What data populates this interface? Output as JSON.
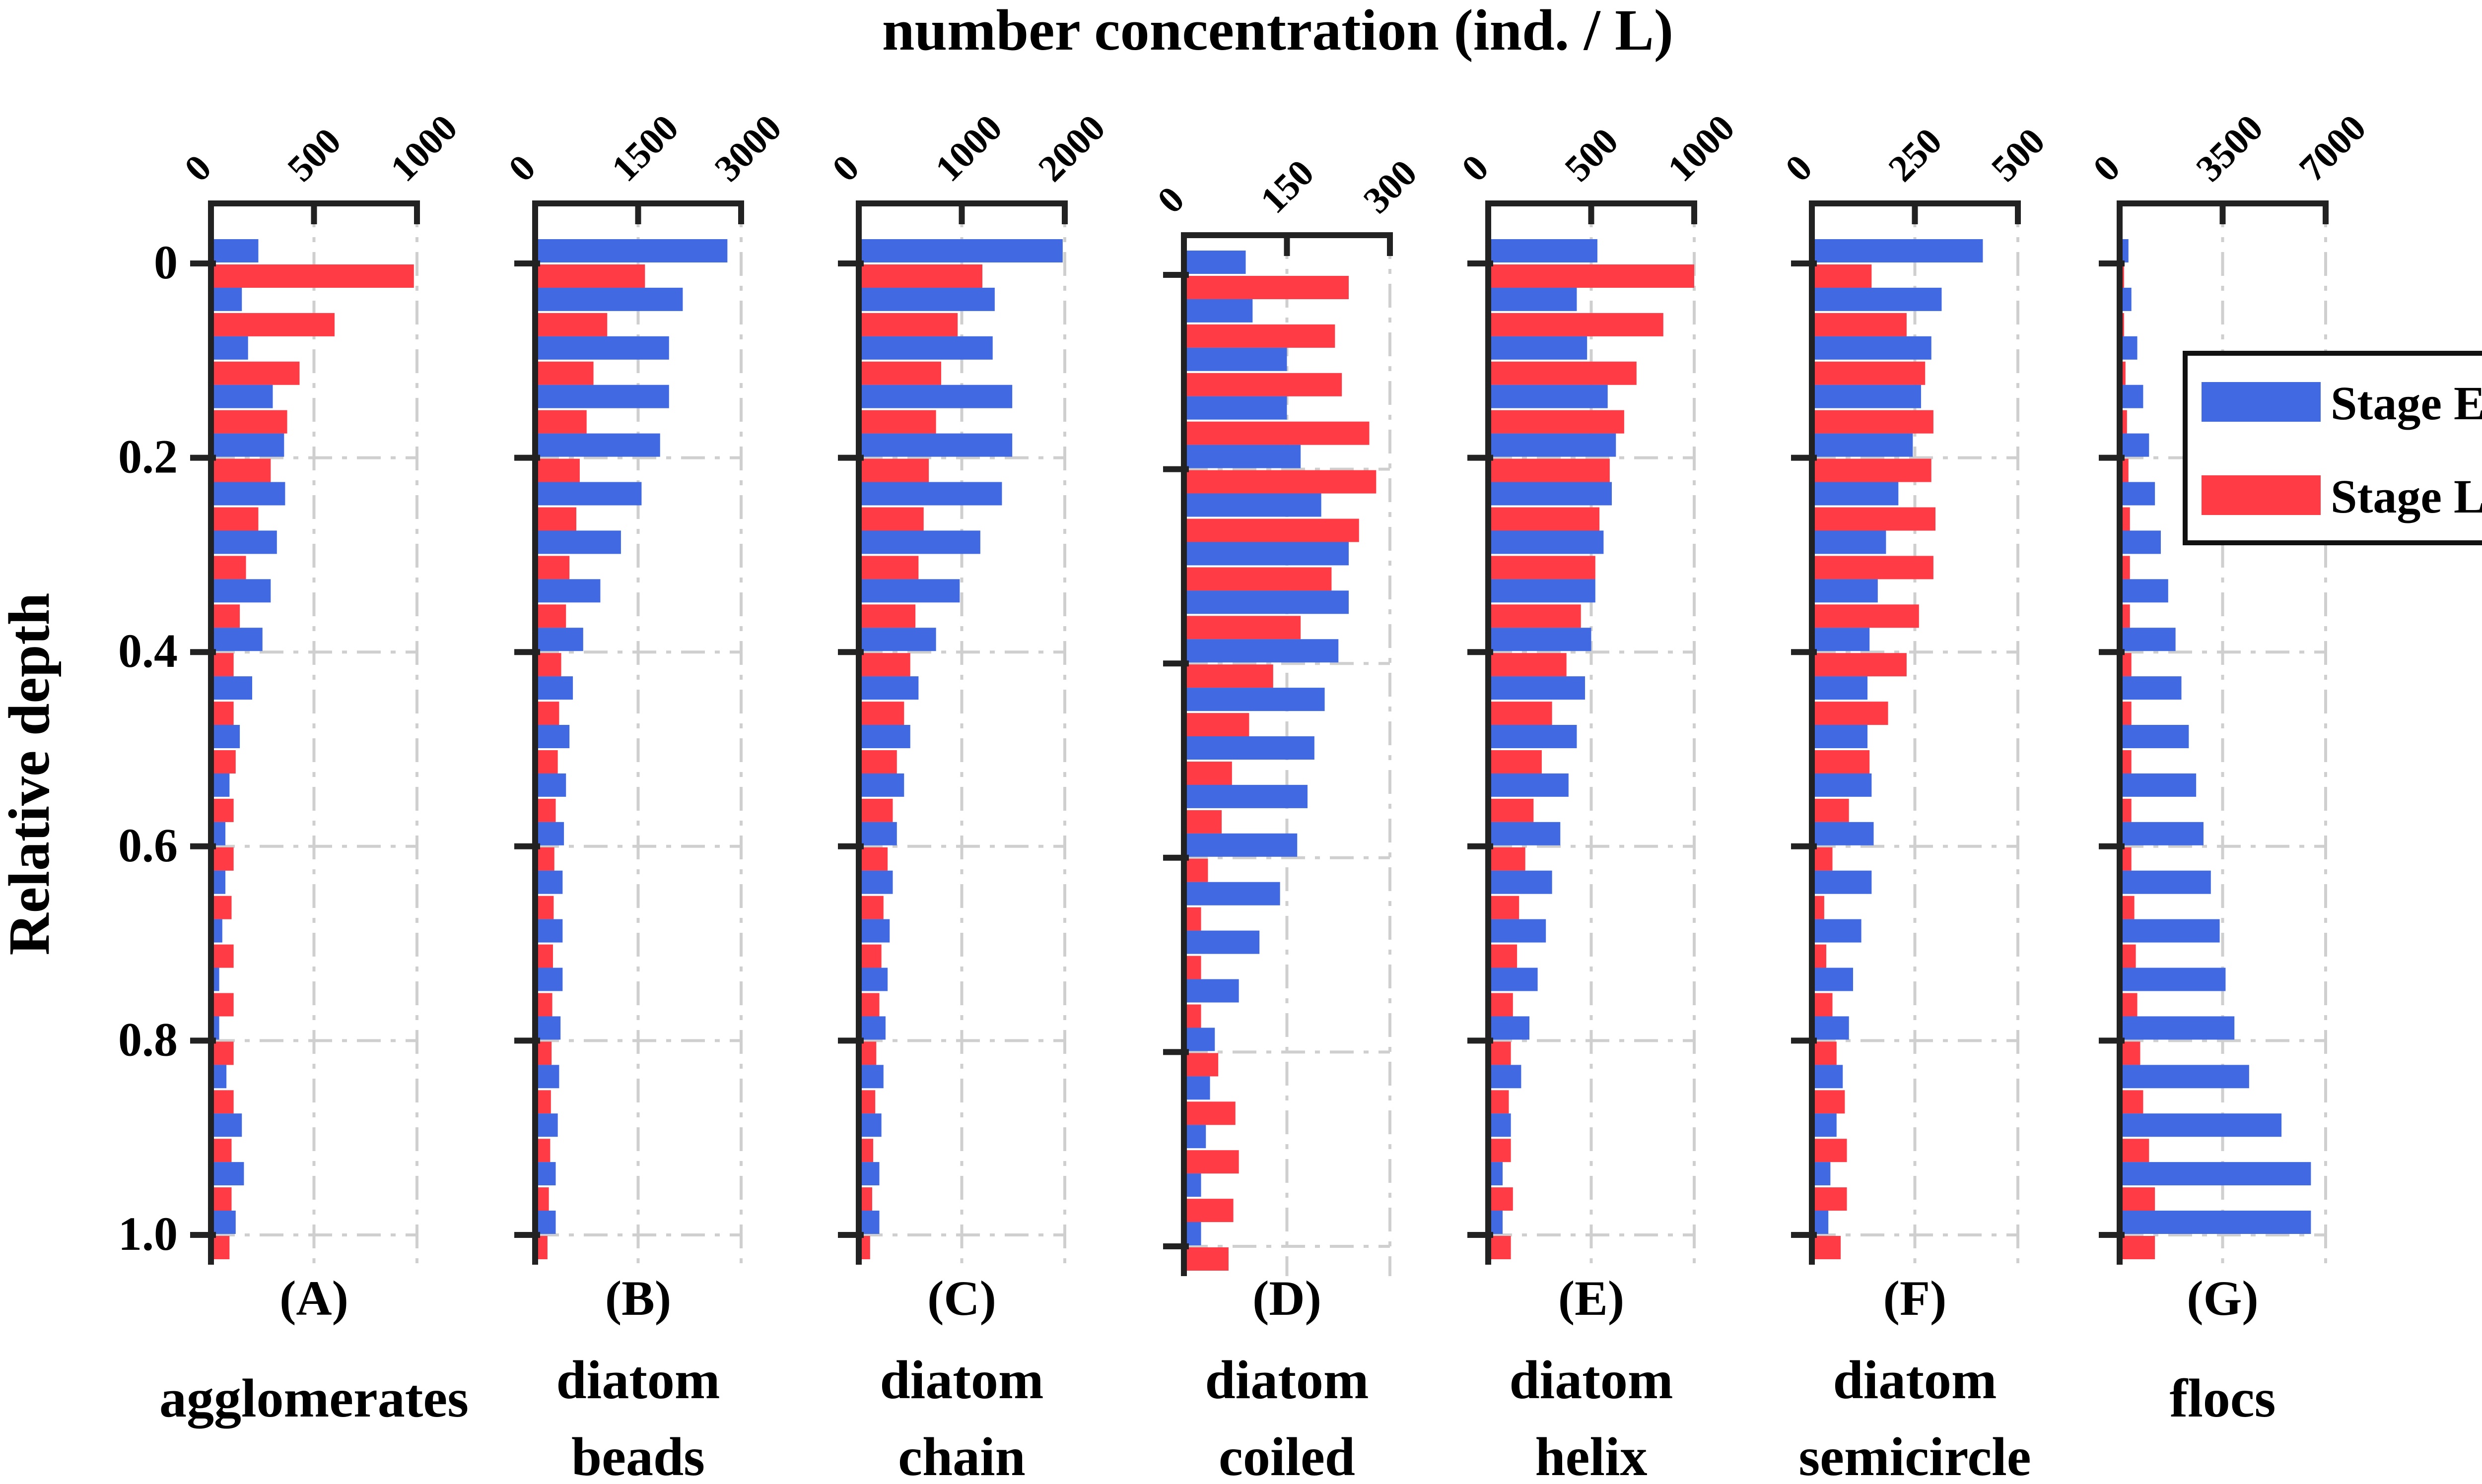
{
  "chart_data": {
    "type": "bar",
    "orientation": "horizontal",
    "title": "number concentration (ind. / L)",
    "ylabel": "Relative depth",
    "ytick_labels": [
      "0",
      "0.2",
      "0.4",
      "0.6",
      "0.8",
      "1.0"
    ],
    "legend": {
      "placement": "top-right",
      "entries": [
        {
          "name": "Stage E",
          "color": "#4169e1"
        },
        {
          "name": "Stage L",
          "color": "#ff3b46"
        }
      ]
    },
    "series_colors": {
      "Stage E": "#4169e1",
      "Stage L": "#ff3b46"
    },
    "panels": [
      {
        "letter": "(A)",
        "name_lines": [
          "agglomerates"
        ],
        "xlim": [
          0,
          1000
        ],
        "xtick_labels": [
          "0",
          "500",
          "1000"
        ],
        "depths": [
          0,
          0.05,
          0.1,
          0.15,
          0.2,
          0.25,
          0.3,
          0.35,
          0.4,
          0.45,
          0.5,
          0.55,
          0.6,
          0.65,
          0.7,
          0.75,
          0.8,
          0.85,
          0.9,
          0.95,
          1.0
        ],
        "stage_e": [
          230,
          150,
          180,
          300,
          355,
          360,
          320,
          290,
          250,
          200,
          140,
          90,
          70,
          70,
          55,
          40,
          40,
          75,
          150,
          160,
          120
        ],
        "stage_l": [
          985,
          600,
          430,
          370,
          290,
          230,
          170,
          140,
          110,
          110,
          120,
          110,
          110,
          100,
          110,
          110,
          110,
          110,
          100,
          100,
          90
        ]
      },
      {
        "letter": "(B)",
        "name_lines": [
          "diatom",
          "beads"
        ],
        "xlim": [
          0,
          3000
        ],
        "xtick_labels": [
          "0",
          "1500",
          "3000"
        ],
        "depths": [
          0,
          0.05,
          0.1,
          0.15,
          0.2,
          0.25,
          0.3,
          0.35,
          0.4,
          0.45,
          0.5,
          0.55,
          0.6,
          0.65,
          0.7,
          0.75,
          0.8,
          0.85,
          0.9,
          0.95,
          1.0
        ],
        "stage_e": [
          2800,
          2150,
          1950,
          1950,
          1820,
          1550,
          1250,
          950,
          700,
          550,
          500,
          450,
          420,
          400,
          400,
          400,
          370,
          350,
          330,
          300,
          300
        ],
        "stage_l": [
          1600,
          1050,
          850,
          750,
          650,
          600,
          500,
          450,
          380,
          350,
          330,
          300,
          280,
          270,
          260,
          250,
          240,
          230,
          220,
          200,
          180
        ]
      },
      {
        "letter": "(C)",
        "name_lines": [
          "diatom",
          "chain"
        ],
        "xlim": [
          0,
          2000
        ],
        "xtick_labels": [
          "0",
          "1000",
          "2000"
        ],
        "depths": [
          0,
          0.05,
          0.1,
          0.15,
          0.2,
          0.25,
          0.3,
          0.35,
          0.4,
          0.45,
          0.5,
          0.55,
          0.6,
          0.65,
          0.7,
          0.75,
          0.8,
          0.85,
          0.9,
          0.95,
          1.0
        ],
        "stage_e": [
          1980,
          1320,
          1300,
          1490,
          1490,
          1390,
          1180,
          980,
          750,
          580,
          500,
          440,
          370,
          330,
          300,
          280,
          260,
          240,
          220,
          200,
          200
        ],
        "stage_l": [
          1200,
          960,
          800,
          750,
          680,
          630,
          580,
          550,
          500,
          440,
          370,
          330,
          280,
          240,
          220,
          200,
          170,
          160,
          140,
          130,
          110
        ]
      },
      {
        "letter": "(D)",
        "name_lines": [
          "diatom",
          "coiled"
        ],
        "xlim": [
          0,
          300
        ],
        "xtick_labels": [
          "0",
          "150",
          "300"
        ],
        "depths": [
          0,
          0.05,
          0.1,
          0.15,
          0.2,
          0.25,
          0.3,
          0.35,
          0.4,
          0.45,
          0.5,
          0.55,
          0.6,
          0.65,
          0.7,
          0.75,
          0.8,
          0.85,
          0.9,
          0.95,
          1.0
        ],
        "stage_e": [
          90,
          100,
          150,
          150,
          170,
          200,
          240,
          240,
          225,
          205,
          190,
          180,
          165,
          140,
          110,
          80,
          45,
          38,
          32,
          25,
          25
        ],
        "stage_l": [
          240,
          220,
          230,
          270,
          280,
          255,
          215,
          170,
          130,
          95,
          70,
          55,
          35,
          25,
          25,
          25,
          50,
          75,
          80,
          72,
          65
        ]
      },
      {
        "letter": "(E)",
        "name_lines": [
          "diatom",
          "helix"
        ],
        "xlim": [
          0,
          1000
        ],
        "xtick_labels": [
          "0",
          "500",
          "1000"
        ],
        "depths": [
          0,
          0.05,
          0.1,
          0.15,
          0.2,
          0.25,
          0.3,
          0.35,
          0.4,
          0.45,
          0.5,
          0.55,
          0.6,
          0.65,
          0.7,
          0.75,
          0.8,
          0.85,
          0.9,
          0.95,
          1.0
        ],
        "stage_e": [
          530,
          430,
          480,
          580,
          620,
          600,
          560,
          520,
          500,
          470,
          430,
          390,
          350,
          310,
          280,
          240,
          200,
          160,
          110,
          70,
          70
        ],
        "stage_l": [
          1000,
          850,
          720,
          660,
          590,
          540,
          520,
          450,
          380,
          310,
          260,
          220,
          180,
          150,
          140,
          120,
          110,
          100,
          110,
          120,
          110
        ]
      },
      {
        "letter": "(F)",
        "name_lines": [
          "diatom",
          "semicircle"
        ],
        "xlim": [
          0,
          500
        ],
        "xtick_labels": [
          "0",
          "250",
          "500"
        ],
        "depths": [
          0,
          0.05,
          0.1,
          0.15,
          0.2,
          0.25,
          0.3,
          0.35,
          0.4,
          0.45,
          0.5,
          0.55,
          0.6,
          0.65,
          0.7,
          0.75,
          0.8,
          0.85,
          0.9,
          0.95,
          1.0
        ],
        "stage_e": [
          415,
          315,
          290,
          265,
          245,
          210,
          180,
          160,
          140,
          135,
          135,
          145,
          150,
          145,
          120,
          100,
          90,
          75,
          60,
          45,
          40
        ],
        "stage_l": [
          145,
          230,
          275,
          295,
          290,
          300,
          295,
          260,
          230,
          185,
          140,
          90,
          50,
          30,
          35,
          50,
          60,
          80,
          85,
          85,
          70
        ]
      },
      {
        "letter": "(G)",
        "name_lines": [
          "flocs"
        ],
        "xlim": [
          0,
          7000
        ],
        "xtick_labels": [
          "0",
          "3500",
          "7000"
        ],
        "depths": [
          0,
          0.05,
          0.1,
          0.15,
          0.2,
          0.25,
          0.3,
          0.35,
          0.4,
          0.45,
          0.5,
          0.55,
          0.6,
          0.65,
          0.7,
          0.75,
          0.8,
          0.85,
          0.9,
          0.95,
          1.0
        ],
        "stage_e": [
          300,
          400,
          600,
          800,
          1000,
          1200,
          1400,
          1650,
          1900,
          2100,
          2350,
          2600,
          2850,
          3100,
          3400,
          3600,
          3900,
          4400,
          5500,
          6500,
          6500
        ],
        "stage_l": [
          150,
          150,
          200,
          250,
          300,
          350,
          350,
          350,
          400,
          400,
          400,
          400,
          400,
          500,
          550,
          600,
          700,
          800,
          1000,
          1200,
          1200
        ]
      }
    ]
  }
}
